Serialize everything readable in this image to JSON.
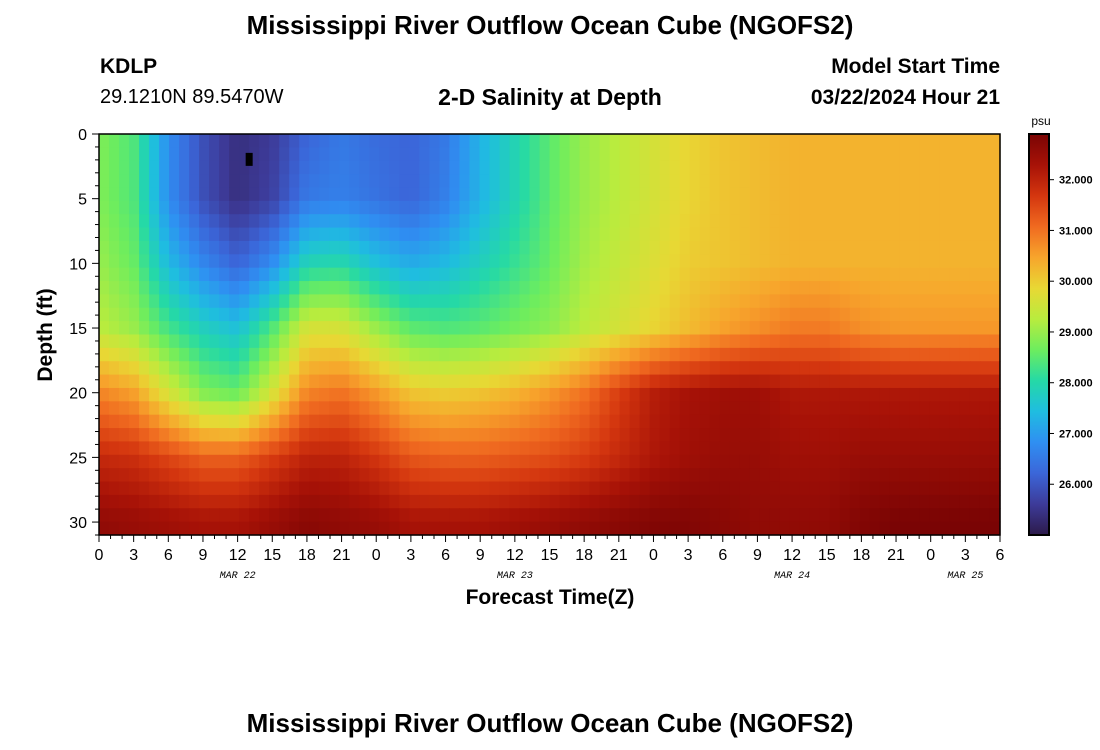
{
  "header": {
    "title": "Mississippi River Outflow Ocean Cube (NGOFS2)",
    "station": "KDLP",
    "coords": "29.1210N  89.5470W",
    "subtitle": "2-D Salinity at Depth",
    "model_start_label": "Model Start Time",
    "model_start_value": "03/22/2024 Hour 21"
  },
  "footer": {
    "title": "Mississippi River Outflow Ocean Cube (NGOFS2)"
  },
  "chart_data": {
    "type": "heatmap",
    "title": "2-D Salinity at Depth",
    "xlabel": "Forecast Time(Z)",
    "ylabel": "Depth (ft)",
    "x_hours_range": [
      0,
      78
    ],
    "x_tick_labels": [
      "0",
      "3",
      "6",
      "9",
      "12",
      "15",
      "18",
      "21",
      "0",
      "3",
      "6",
      "9",
      "12",
      "15",
      "18",
      "21",
      "0",
      "3",
      "6",
      "9",
      "12",
      "15",
      "18",
      "21",
      "0",
      "3",
      "6"
    ],
    "date_labels": [
      "MAR 22",
      "MAR 23",
      "MAR 24",
      "MAR 25"
    ],
    "y_ticks": [
      0,
      5,
      10,
      15,
      20,
      25,
      30
    ],
    "ylim": [
      0,
      31
    ],
    "y_inverted": true,
    "colorbar": {
      "unit": "psu",
      "range": [
        25.0,
        32.9
      ],
      "ticks": [
        "26.000",
        "27.000",
        "28.000",
        "29.000",
        "30.000",
        "31.000",
        "32.000"
      ],
      "tick_values": [
        26,
        27,
        28,
        29,
        30,
        31,
        32
      ],
      "colormap": [
        "#2c1a4a",
        "#3d3b99",
        "#3b66d9",
        "#2f8ff2",
        "#1fbde0",
        "#25d9a6",
        "#6ded5e",
        "#b8ec3e",
        "#e8d834",
        "#f7a52c",
        "#f06a20",
        "#d4360f",
        "#a71207",
        "#7a0404"
      ]
    },
    "profiles_x_hours": [
      0,
      3,
      6,
      9,
      12,
      15,
      18,
      21,
      24,
      27,
      30,
      33,
      36,
      39,
      42,
      45,
      48,
      51,
      54,
      57,
      60,
      63,
      66,
      69,
      72,
      75,
      78
    ],
    "depth_rows_ft": [
      0,
      5,
      10,
      15,
      20,
      25,
      30
    ],
    "salinity_psu": [
      [
        28.8,
        28.4,
        26.8,
        25.9,
        25.4,
        25.6,
        26.2,
        26.5,
        26.3,
        26.2,
        26.5,
        27.3,
        27.9,
        28.5,
        29.0,
        29.3,
        29.6,
        29.9,
        30.1,
        30.2,
        30.3,
        30.3,
        30.3,
        30.3,
        30.3,
        30.3,
        30.3
      ],
      [
        28.8,
        28.4,
        26.8,
        25.9,
        25.4,
        25.7,
        26.5,
        26.6,
        26.4,
        26.2,
        26.6,
        27.3,
        27.9,
        28.5,
        29.0,
        29.3,
        29.6,
        29.9,
        30.1,
        30.2,
        30.3,
        30.3,
        30.3,
        30.3,
        30.3,
        30.3,
        30.3
      ],
      [
        29.0,
        28.6,
        27.4,
        26.7,
        26.2,
        26.8,
        27.9,
        28.0,
        27.5,
        27.2,
        27.4,
        27.8,
        28.2,
        28.6,
        29.1,
        29.4,
        29.7,
        30.0,
        30.1,
        30.2,
        30.3,
        30.3,
        30.3,
        30.3,
        30.3,
        30.3,
        30.3
      ],
      [
        29.3,
        29.0,
        28.3,
        27.8,
        27.5,
        28.4,
        29.6,
        29.6,
        29.0,
        28.5,
        28.4,
        28.5,
        28.7,
        28.9,
        29.3,
        29.6,
        29.9,
        30.2,
        30.5,
        30.7,
        30.9,
        30.9,
        30.7,
        30.6,
        30.6,
        30.6,
        30.6
      ],
      [
        30.8,
        30.5,
        29.6,
        28.8,
        28.6,
        29.6,
        30.8,
        31.0,
        30.6,
        30.1,
        30.0,
        30.1,
        30.3,
        30.6,
        31.0,
        31.6,
        32.1,
        32.3,
        32.4,
        32.4,
        32.2,
        32.2,
        32.2,
        32.2,
        32.2,
        32.2,
        32.2
      ],
      [
        31.9,
        31.8,
        31.5,
        31.2,
        31.2,
        31.6,
        32.0,
        32.0,
        31.7,
        31.3,
        31.2,
        31.2,
        31.3,
        31.4,
        31.6,
        31.9,
        32.2,
        32.4,
        32.5,
        32.5,
        32.4,
        32.4,
        32.5,
        32.5,
        32.5,
        32.5,
        32.5
      ],
      [
        32.6,
        32.5,
        32.4,
        32.3,
        32.3,
        32.5,
        32.7,
        32.6,
        32.5,
        32.3,
        32.3,
        32.3,
        32.4,
        32.5,
        32.6,
        32.7,
        32.8,
        32.8,
        32.7,
        32.6,
        32.6,
        32.6,
        32.8,
        32.9,
        32.9,
        32.9,
        32.9
      ]
    ],
    "markers": [
      {
        "x_hours": 13,
        "depth_ft": 2
      }
    ]
  }
}
